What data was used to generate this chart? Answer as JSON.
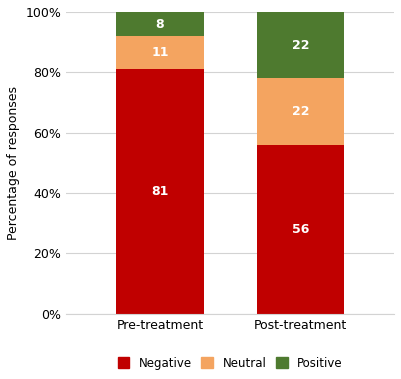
{
  "categories": [
    "Pre-treatment",
    "Post-treatment"
  ],
  "negative": [
    81,
    56
  ],
  "neutral": [
    11,
    22
  ],
  "positive": [
    8,
    22
  ],
  "negative_color": "#C00000",
  "neutral_color": "#F4A460",
  "positive_color": "#4E7A2F",
  "ylabel": "Percentage of responses",
  "yticks": [
    0,
    20,
    40,
    60,
    80,
    100
  ],
  "ytick_labels": [
    "0%",
    "20%",
    "40%",
    "60%",
    "80%",
    "100%"
  ],
  "legend_labels": [
    "Negative",
    "Neutral",
    "Positive"
  ],
  "bar_width": 0.28,
  "label_fontsize": 9,
  "legend_fontsize": 8.5,
  "ylabel_fontsize": 9,
  "xtick_fontsize": 9
}
